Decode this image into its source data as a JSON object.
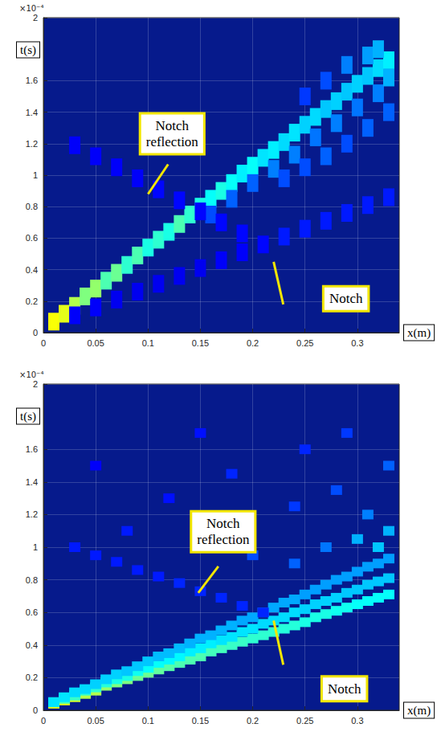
{
  "chart_data": [
    {
      "type": "heatmap",
      "xlabel": "x(m)",
      "ylabel": "t(s)",
      "y_multiplier_label": "×10⁻⁴",
      "xlim": [
        0,
        0.34
      ],
      "xticks": [
        0,
        0.05,
        0.1,
        0.15,
        0.2,
        0.25,
        0.3
      ],
      "ylim": [
        0,
        2
      ],
      "yticks": [
        0,
        0.2,
        0.4,
        0.6,
        0.8,
        1,
        1.2,
        1.4,
        1.6,
        2
      ],
      "grid": true,
      "marker": "square",
      "color_range": [
        0,
        1
      ],
      "annotations": [
        {
          "text": "Notch reflection",
          "x": 0.1,
          "y": 0.88
        },
        {
          "text": "Notch",
          "x": 0.22,
          "y": 0.45
        }
      ],
      "cells": [
        [
          0.01,
          0.07,
          0.62
        ],
        [
          0.02,
          0.12,
          0.6
        ],
        [
          0.03,
          0.17,
          0.55
        ],
        [
          0.04,
          0.23,
          0.5
        ],
        [
          0.05,
          0.28,
          0.52
        ],
        [
          0.06,
          0.33,
          0.45
        ],
        [
          0.07,
          0.38,
          0.48
        ],
        [
          0.08,
          0.43,
          0.42
        ],
        [
          0.09,
          0.49,
          0.45
        ],
        [
          0.1,
          0.54,
          0.4
        ],
        [
          0.11,
          0.59,
          0.42
        ],
        [
          0.12,
          0.64,
          0.4
        ],
        [
          0.13,
          0.69,
          0.45
        ],
        [
          0.14,
          0.75,
          0.42
        ],
        [
          0.15,
          0.8,
          0.4
        ],
        [
          0.16,
          0.85,
          0.38
        ],
        [
          0.17,
          0.9,
          0.4
        ],
        [
          0.18,
          0.95,
          0.38
        ],
        [
          0.19,
          1.01,
          0.36
        ],
        [
          0.2,
          1.06,
          0.38
        ],
        [
          0.21,
          1.11,
          0.35
        ],
        [
          0.22,
          1.16,
          0.36
        ],
        [
          0.23,
          1.21,
          0.34
        ],
        [
          0.24,
          1.27,
          0.35
        ],
        [
          0.25,
          1.32,
          0.33
        ],
        [
          0.26,
          1.37,
          0.34
        ],
        [
          0.27,
          1.42,
          0.32
        ],
        [
          0.28,
          1.47,
          0.33
        ],
        [
          0.29,
          1.53,
          0.32
        ],
        [
          0.3,
          1.58,
          0.33
        ],
        [
          0.31,
          1.63,
          0.32
        ],
        [
          0.32,
          1.68,
          0.34
        ],
        [
          0.33,
          1.73,
          0.36
        ],
        [
          0.16,
          0.75,
          0.2
        ],
        [
          0.18,
          0.85,
          0.22
        ],
        [
          0.2,
          0.95,
          0.22
        ],
        [
          0.22,
          1.04,
          0.25
        ],
        [
          0.23,
          0.98,
          0.2
        ],
        [
          0.24,
          1.13,
          0.25
        ],
        [
          0.25,
          1.05,
          0.2
        ],
        [
          0.26,
          1.24,
          0.24
        ],
        [
          0.27,
          1.12,
          0.22
        ],
        [
          0.28,
          1.33,
          0.25
        ],
        [
          0.29,
          1.2,
          0.2
        ],
        [
          0.3,
          1.43,
          0.24
        ],
        [
          0.31,
          1.3,
          0.22
        ],
        [
          0.32,
          1.52,
          0.25
        ],
        [
          0.33,
          1.4,
          0.22
        ],
        [
          0.29,
          1.7,
          0.25
        ],
        [
          0.31,
          1.76,
          0.28
        ],
        [
          0.32,
          1.8,
          0.3
        ],
        [
          0.33,
          1.62,
          0.3
        ],
        [
          0.27,
          1.6,
          0.2
        ],
        [
          0.25,
          1.5,
          0.18
        ],
        [
          0.03,
          0.11,
          0.12
        ],
        [
          0.05,
          0.16,
          0.12
        ],
        [
          0.07,
          0.21,
          0.11
        ],
        [
          0.09,
          0.26,
          0.11
        ],
        [
          0.11,
          0.31,
          0.11
        ],
        [
          0.13,
          0.36,
          0.11
        ],
        [
          0.15,
          0.41,
          0.11
        ],
        [
          0.17,
          0.46,
          0.12
        ],
        [
          0.19,
          0.51,
          0.12
        ],
        [
          0.21,
          0.56,
          0.13
        ],
        [
          0.23,
          0.61,
          0.15
        ],
        [
          0.25,
          0.66,
          0.15
        ],
        [
          0.27,
          0.71,
          0.15
        ],
        [
          0.29,
          0.76,
          0.15
        ],
        [
          0.31,
          0.81,
          0.15
        ],
        [
          0.33,
          0.86,
          0.15
        ],
        [
          0.19,
          0.63,
          0.13
        ],
        [
          0.17,
          0.7,
          0.13
        ],
        [
          0.15,
          0.77,
          0.13
        ],
        [
          0.13,
          0.84,
          0.13
        ],
        [
          0.11,
          0.91,
          0.13
        ],
        [
          0.09,
          0.98,
          0.12
        ],
        [
          0.07,
          1.05,
          0.12
        ],
        [
          0.05,
          1.12,
          0.12
        ],
        [
          0.03,
          1.19,
          0.12
        ]
      ]
    },
    {
      "type": "heatmap",
      "xlabel": "x(m)",
      "ylabel": "t(s)",
      "y_multiplier_label": "×10⁻⁴",
      "xlim": [
        0,
        0.34
      ],
      "xticks": [
        0,
        0.05,
        0.1,
        0.15,
        0.2,
        0.25,
        0.3
      ],
      "ylim": [
        0,
        2
      ],
      "yticks": [
        0,
        0.2,
        0.4,
        0.6,
        0.8,
        1,
        1.2,
        1.4,
        1.6,
        2
      ],
      "grid": true,
      "marker": "square",
      "color_range": [
        0,
        1
      ],
      "annotations": [
        {
          "text": "Notch reflection",
          "x": 0.148,
          "y": 0.72
        },
        {
          "text": "Notch",
          "x": 0.22,
          "y": 0.55
        }
      ],
      "cells": [
        [
          0.01,
          0.04,
          0.6
        ],
        [
          0.02,
          0.06,
          0.6
        ],
        [
          0.03,
          0.08,
          0.58
        ],
        [
          0.04,
          0.1,
          0.55
        ],
        [
          0.05,
          0.12,
          0.55
        ],
        [
          0.06,
          0.15,
          0.52
        ],
        [
          0.07,
          0.17,
          0.5
        ],
        [
          0.08,
          0.19,
          0.5
        ],
        [
          0.09,
          0.21,
          0.48
        ],
        [
          0.1,
          0.23,
          0.48
        ],
        [
          0.11,
          0.25,
          0.47
        ],
        [
          0.12,
          0.27,
          0.46
        ],
        [
          0.13,
          0.29,
          0.45
        ],
        [
          0.14,
          0.31,
          0.45
        ],
        [
          0.15,
          0.33,
          0.45
        ],
        [
          0.16,
          0.36,
          0.44
        ],
        [
          0.17,
          0.38,
          0.44
        ],
        [
          0.18,
          0.4,
          0.43
        ],
        [
          0.19,
          0.42,
          0.43
        ],
        [
          0.2,
          0.44,
          0.42
        ],
        [
          0.21,
          0.46,
          0.42
        ],
        [
          0.22,
          0.48,
          0.42
        ],
        [
          0.23,
          0.5,
          0.41
        ],
        [
          0.24,
          0.52,
          0.41
        ],
        [
          0.25,
          0.54,
          0.4
        ],
        [
          0.26,
          0.57,
          0.4
        ],
        [
          0.27,
          0.59,
          0.4
        ],
        [
          0.28,
          0.61,
          0.39
        ],
        [
          0.29,
          0.63,
          0.39
        ],
        [
          0.3,
          0.65,
          0.38
        ],
        [
          0.31,
          0.67,
          0.38
        ],
        [
          0.32,
          0.69,
          0.38
        ],
        [
          0.33,
          0.71,
          0.38
        ],
        [
          0.01,
          0.05,
          0.45
        ],
        [
          0.02,
          0.07,
          0.44
        ],
        [
          0.03,
          0.09,
          0.43
        ],
        [
          0.04,
          0.12,
          0.42
        ],
        [
          0.05,
          0.14,
          0.42
        ],
        [
          0.06,
          0.17,
          0.41
        ],
        [
          0.07,
          0.19,
          0.4
        ],
        [
          0.08,
          0.21,
          0.4
        ],
        [
          0.09,
          0.24,
          0.39
        ],
        [
          0.1,
          0.26,
          0.38
        ],
        [
          0.11,
          0.29,
          0.38
        ],
        [
          0.12,
          0.31,
          0.37
        ],
        [
          0.13,
          0.33,
          0.37
        ],
        [
          0.14,
          0.36,
          0.36
        ],
        [
          0.15,
          0.38,
          0.36
        ],
        [
          0.16,
          0.41,
          0.36
        ],
        [
          0.17,
          0.43,
          0.35
        ],
        [
          0.18,
          0.45,
          0.35
        ],
        [
          0.19,
          0.48,
          0.35
        ],
        [
          0.2,
          0.5,
          0.35
        ],
        [
          0.21,
          0.53,
          0.34
        ],
        [
          0.22,
          0.55,
          0.34
        ],
        [
          0.23,
          0.57,
          0.34
        ],
        [
          0.24,
          0.6,
          0.34
        ],
        [
          0.25,
          0.62,
          0.33
        ],
        [
          0.26,
          0.65,
          0.33
        ],
        [
          0.27,
          0.67,
          0.33
        ],
        [
          0.28,
          0.69,
          0.33
        ],
        [
          0.29,
          0.72,
          0.32
        ],
        [
          0.3,
          0.74,
          0.32
        ],
        [
          0.31,
          0.77,
          0.32
        ],
        [
          0.32,
          0.79,
          0.32
        ],
        [
          0.33,
          0.81,
          0.32
        ],
        [
          0.01,
          0.05,
          0.35
        ],
        [
          0.02,
          0.08,
          0.35
        ],
        [
          0.03,
          0.11,
          0.34
        ],
        [
          0.04,
          0.13,
          0.34
        ],
        [
          0.05,
          0.16,
          0.33
        ],
        [
          0.06,
          0.19,
          0.33
        ],
        [
          0.07,
          0.22,
          0.33
        ],
        [
          0.08,
          0.24,
          0.32
        ],
        [
          0.09,
          0.27,
          0.32
        ],
        [
          0.1,
          0.3,
          0.32
        ],
        [
          0.11,
          0.33,
          0.31
        ],
        [
          0.12,
          0.35,
          0.31
        ],
        [
          0.13,
          0.38,
          0.31
        ],
        [
          0.14,
          0.41,
          0.3
        ],
        [
          0.15,
          0.44,
          0.3
        ],
        [
          0.16,
          0.46,
          0.3
        ],
        [
          0.17,
          0.49,
          0.3
        ],
        [
          0.18,
          0.52,
          0.3
        ],
        [
          0.19,
          0.55,
          0.29
        ],
        [
          0.2,
          0.57,
          0.29
        ],
        [
          0.21,
          0.6,
          0.29
        ],
        [
          0.22,
          0.63,
          0.29
        ],
        [
          0.23,
          0.66,
          0.29
        ],
        [
          0.24,
          0.68,
          0.29
        ],
        [
          0.25,
          0.71,
          0.28
        ],
        [
          0.26,
          0.74,
          0.28
        ],
        [
          0.27,
          0.77,
          0.28
        ],
        [
          0.28,
          0.8,
          0.28
        ],
        [
          0.29,
          0.82,
          0.28
        ],
        [
          0.3,
          0.85,
          0.28
        ],
        [
          0.31,
          0.88,
          0.28
        ],
        [
          0.32,
          0.9,
          0.28
        ],
        [
          0.33,
          0.93,
          0.28
        ],
        [
          0.21,
          0.6,
          0.16
        ],
        [
          0.19,
          0.64,
          0.16
        ],
        [
          0.17,
          0.69,
          0.16
        ],
        [
          0.15,
          0.73,
          0.16
        ],
        [
          0.13,
          0.78,
          0.16
        ],
        [
          0.11,
          0.82,
          0.15
        ],
        [
          0.09,
          0.86,
          0.15
        ],
        [
          0.07,
          0.91,
          0.15
        ],
        [
          0.05,
          0.95,
          0.15
        ],
        [
          0.03,
          1.0,
          0.15
        ],
        [
          0.08,
          1.1,
          0.15
        ],
        [
          0.12,
          1.3,
          0.14
        ],
        [
          0.18,
          1.45,
          0.16
        ],
        [
          0.24,
          1.25,
          0.18
        ],
        [
          0.25,
          1.6,
          0.16
        ],
        [
          0.28,
          1.35,
          0.2
        ],
        [
          0.3,
          1.05,
          0.3
        ],
        [
          0.32,
          1.0,
          0.32
        ],
        [
          0.31,
          1.2,
          0.25
        ],
        [
          0.33,
          1.5,
          0.22
        ],
        [
          0.27,
          1.0,
          0.24
        ],
        [
          0.29,
          1.7,
          0.18
        ],
        [
          0.05,
          1.5,
          0.12
        ],
        [
          0.15,
          1.7,
          0.14
        ],
        [
          0.2,
          0.95,
          0.2
        ],
        [
          0.24,
          0.9,
          0.22
        ],
        [
          0.33,
          1.1,
          0.3
        ]
      ]
    }
  ]
}
